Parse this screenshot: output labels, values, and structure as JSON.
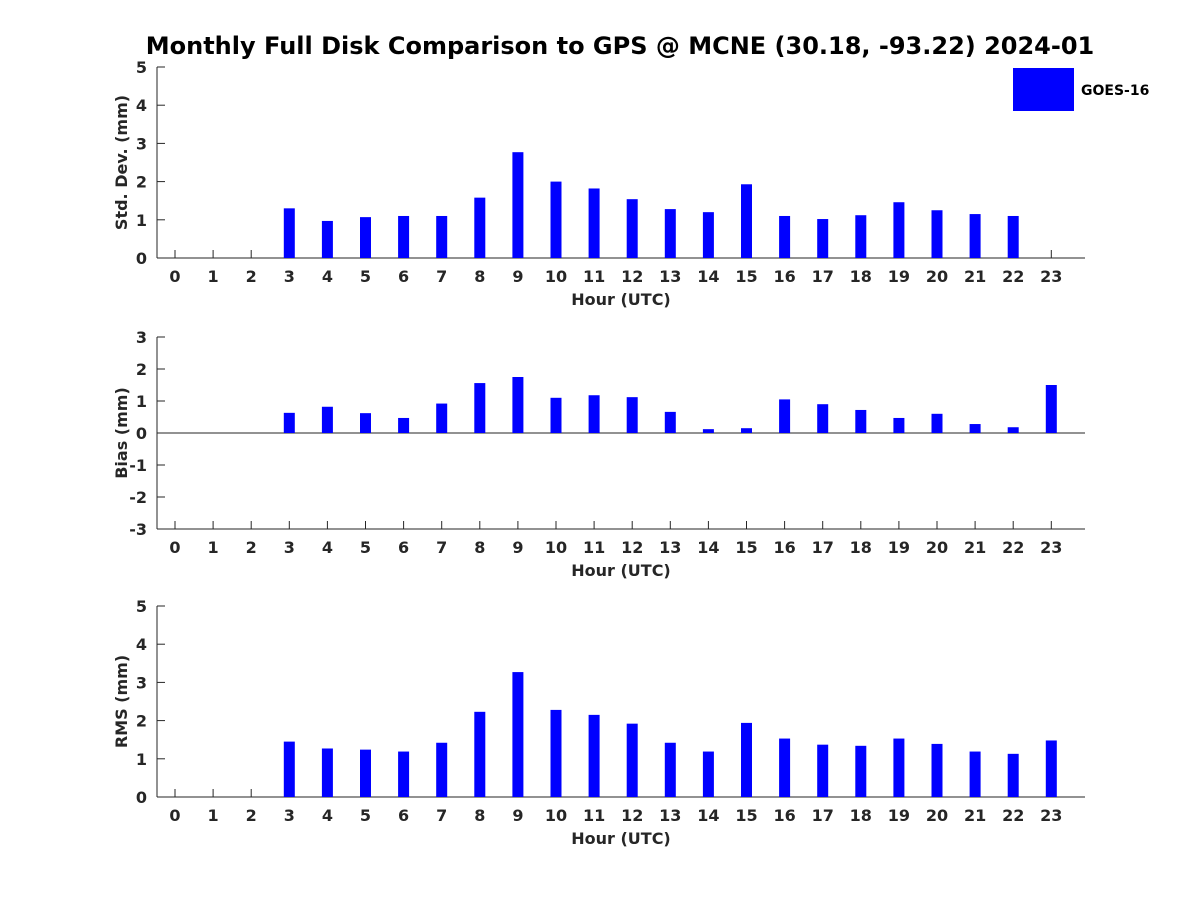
{
  "title": "Monthly Full Disk Comparison to GPS @ MCNE (30.18, -93.22) 2024-01",
  "legend": {
    "label": "GOES-16",
    "position": "top-right"
  },
  "colors": {
    "bar": "#0000FF",
    "axis": "#262626"
  },
  "chart_data": [
    {
      "type": "bar",
      "ylabel": "Std. Dev. (mm)",
      "xlabel": "Hour (UTC)",
      "ylim": [
        0,
        5
      ],
      "yticks": [
        0,
        1,
        2,
        3,
        4,
        5
      ],
      "categories": [
        0,
        1,
        2,
        3,
        4,
        5,
        6,
        7,
        8,
        9,
        10,
        11,
        12,
        13,
        14,
        15,
        16,
        17,
        18,
        19,
        20,
        21,
        22,
        23
      ],
      "series": [
        {
          "name": "GOES-16",
          "values": [
            null,
            null,
            null,
            1.3,
            0.97,
            1.07,
            1.1,
            1.1,
            1.58,
            2.77,
            2.0,
            1.82,
            1.54,
            1.28,
            1.2,
            1.93,
            1.1,
            1.02,
            1.12,
            1.46,
            1.25,
            1.15,
            1.1,
            null
          ]
        }
      ]
    },
    {
      "type": "bar",
      "ylabel": "Bias (mm)",
      "xlabel": "Hour (UTC)",
      "ylim": [
        -3,
        3
      ],
      "yticks": [
        -3,
        -2,
        -1,
        0,
        1,
        2,
        3
      ],
      "categories": [
        0,
        1,
        2,
        3,
        4,
        5,
        6,
        7,
        8,
        9,
        10,
        11,
        12,
        13,
        14,
        15,
        16,
        17,
        18,
        19,
        20,
        21,
        22,
        23
      ],
      "series": [
        {
          "name": "GOES-16",
          "values": [
            null,
            null,
            null,
            0.63,
            0.82,
            0.62,
            0.47,
            0.92,
            1.56,
            1.75,
            1.1,
            1.18,
            1.12,
            0.66,
            0.12,
            0.15,
            1.05,
            0.9,
            0.72,
            0.47,
            0.6,
            0.28,
            0.18,
            1.5
          ]
        }
      ]
    },
    {
      "type": "bar",
      "ylabel": "RMS (mm)",
      "xlabel": "Hour (UTC)",
      "ylim": [
        0,
        5
      ],
      "yticks": [
        0,
        1,
        2,
        3,
        4,
        5
      ],
      "categories": [
        0,
        1,
        2,
        3,
        4,
        5,
        6,
        7,
        8,
        9,
        10,
        11,
        12,
        13,
        14,
        15,
        16,
        17,
        18,
        19,
        20,
        21,
        22,
        23
      ],
      "series": [
        {
          "name": "GOES-16",
          "values": [
            null,
            null,
            null,
            1.45,
            1.27,
            1.24,
            1.19,
            1.42,
            2.23,
            3.27,
            2.28,
            2.15,
            1.92,
            1.42,
            1.19,
            1.94,
            1.53,
            1.37,
            1.34,
            1.53,
            1.39,
            1.19,
            1.13,
            1.48
          ]
        }
      ]
    }
  ]
}
